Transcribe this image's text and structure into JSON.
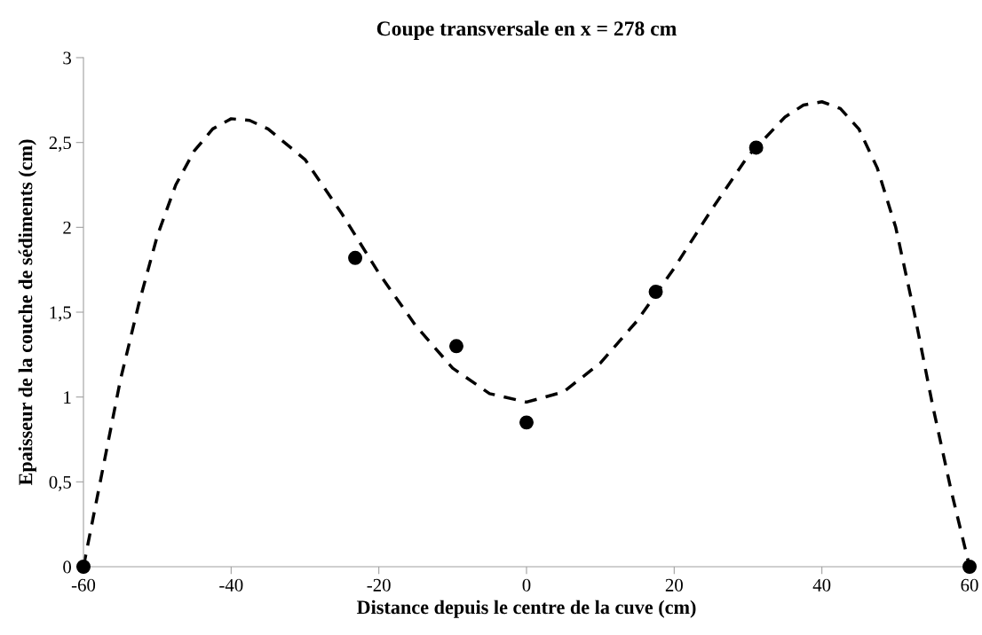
{
  "chart_data": {
    "type": "scatter",
    "title": "Coupe transversale en x = 278 cm",
    "xlabel": "Distance depuis le centre de la cuve (cm)",
    "ylabel": "Epaisseur de la couche de sédiments (cm)",
    "series": [
      {
        "color": "#000000",
        "marker": "circle",
        "x": [
          -60,
          -23.2,
          -9.5,
          0,
          17.5,
          31.1,
          60
        ],
        "values": [
          0,
          1.82,
          1.3,
          0.85,
          1.62,
          2.47,
          0
        ]
      },
      {
        "type": "line",
        "color": "#000000",
        "marker": "none",
        "line_style": "dashed",
        "x": [
          -60,
          -57.5,
          -55,
          -52.5,
          -50,
          -47.5,
          -45,
          -42.5,
          -40,
          -37.5,
          -35,
          -30,
          -25,
          -20,
          -15,
          -10,
          -5,
          0,
          5,
          10,
          15,
          20,
          25,
          30,
          35,
          37.5,
          40,
          42.5,
          45,
          47.5,
          50,
          52.5,
          55,
          57.5,
          60
        ],
        "values": [
          0,
          0.55,
          1.1,
          1.55,
          1.95,
          2.25,
          2.45,
          2.58,
          2.64,
          2.63,
          2.58,
          2.4,
          2.08,
          1.73,
          1.42,
          1.17,
          1.02,
          0.97,
          1.03,
          1.2,
          1.45,
          1.76,
          2.1,
          2.42,
          2.65,
          2.72,
          2.74,
          2.7,
          2.58,
          2.35,
          2.0,
          1.5,
          0.95,
          0.45,
          0
        ]
      }
    ],
    "xlim": [
      -60,
      60
    ],
    "xticks": [
      -60,
      -40,
      -20,
      0,
      20,
      40,
      60
    ],
    "ylim": [
      0,
      3
    ],
    "yticks": [
      0,
      {
        "value": 0.5,
        "label": "0,5"
      },
      1,
      {
        "value": 1.5,
        "label": "1,5"
      },
      2,
      {
        "value": 2.5,
        "label": "2,5"
      },
      3
    ],
    "grid": false,
    "legend": false
  }
}
